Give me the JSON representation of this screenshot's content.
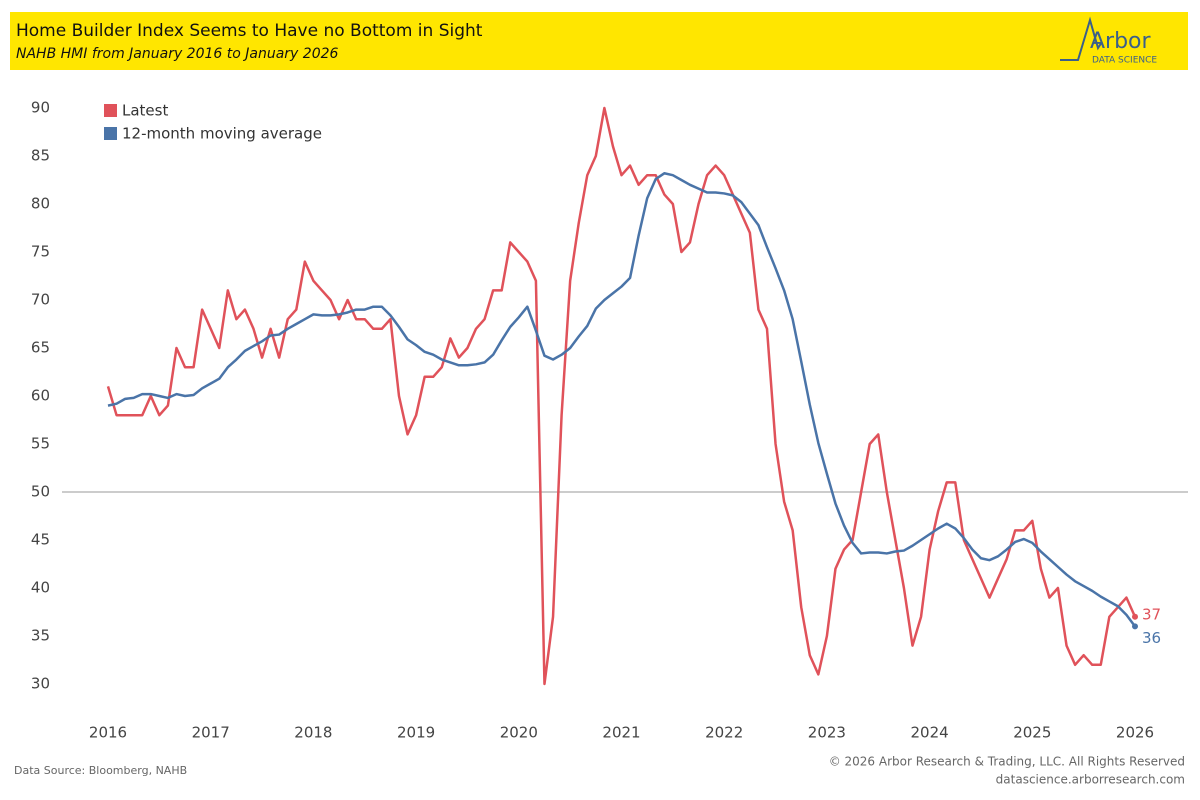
{
  "header": {
    "title": "Home Builder Index Seems to Have no Bottom in Sight",
    "subtitle": "NAHB HMI from January 2016 to January 2026",
    "logo_name": "Arbor",
    "logo_tagline": "DATA SCIENCE"
  },
  "footer": {
    "source": "Data Source: Bloomberg, NAHB",
    "copyright": "© 2026 Arbor Research & Trading, LLC. All Rights Reserved",
    "website": "datascience.arborresearch.com"
  },
  "chart_data": {
    "type": "line",
    "categories": [
      "2016",
      null,
      null,
      null,
      null,
      null,
      null,
      null,
      null,
      null,
      null,
      null,
      "2017",
      null,
      null,
      null,
      null,
      null,
      null,
      null,
      null,
      null,
      null,
      null,
      "2018",
      null,
      null,
      null,
      null,
      null,
      null,
      null,
      null,
      null,
      null,
      null,
      "2019",
      null,
      null,
      null,
      null,
      null,
      null,
      null,
      null,
      null,
      null,
      null,
      "2020",
      null,
      null,
      null,
      null,
      null,
      null,
      null,
      null,
      null,
      null,
      null,
      "2021",
      null,
      null,
      null,
      null,
      null,
      null,
      null,
      null,
      null,
      null,
      null,
      "2022",
      null,
      null,
      null,
      null,
      null,
      null,
      null,
      null,
      null,
      null,
      null,
      "2023",
      null,
      null,
      null,
      null,
      null,
      null,
      null,
      null,
      null,
      null,
      null,
      "2024",
      null,
      null,
      null,
      null,
      null,
      null,
      null,
      null,
      null,
      null,
      null,
      "2025",
      null,
      null,
      null,
      null,
      null,
      null,
      null,
      null,
      null,
      null,
      null,
      "2026"
    ],
    "series": [
      {
        "name": "Latest",
        "color": "#e0525a",
        "values": [
          61,
          58,
          58,
          58,
          58,
          60,
          58,
          59,
          65,
          63,
          63,
          69,
          67,
          65,
          71,
          68,
          69,
          67,
          64,
          67,
          64,
          68,
          69,
          74,
          72,
          71,
          70,
          68,
          70,
          68,
          68,
          67,
          67,
          68,
          60,
          56,
          58,
          62,
          62,
          63,
          66,
          64,
          65,
          67,
          68,
          71,
          71,
          76,
          75,
          74,
          72,
          30,
          37,
          58,
          72,
          78,
          83,
          85,
          90,
          86,
          83,
          84,
          82,
          83,
          83,
          81,
          80,
          75,
          76,
          80,
          83,
          84,
          83,
          81,
          79,
          77,
          69,
          67,
          55,
          49,
          46,
          38,
          33,
          31,
          35,
          42,
          44,
          45,
          50,
          55,
          56,
          50,
          45,
          40,
          34,
          37,
          44,
          48,
          51,
          51,
          45,
          43,
          41,
          39,
          41,
          43,
          46,
          46,
          47,
          42,
          39,
          40,
          34,
          32,
          33,
          32,
          32,
          37,
          38,
          39,
          37
        ]
      },
      {
        "name": "12-month moving average",
        "color": "#4a74a8",
        "values": [
          59,
          59.2,
          59.7,
          59.8,
          60.2,
          60.2,
          60,
          59.8,
          60.2,
          60,
          60.1,
          60.8,
          61.3,
          61.8,
          63,
          63.8,
          64.7,
          65.2,
          65.7,
          66.3,
          66.4,
          67,
          67.5,
          68,
          68.5,
          68.4,
          68.4,
          68.5,
          68.7,
          69,
          69,
          69.3,
          69.3,
          68.4,
          67.2,
          65.9,
          65.3,
          64.6,
          64.3,
          63.8,
          63.5,
          63.2,
          63.2,
          63.3,
          63.5,
          64.3,
          65.8,
          67.2,
          68.2,
          69.3,
          66.8,
          64.2,
          63.8,
          64.3,
          65,
          66.2,
          67.3,
          69.1,
          70,
          70.7,
          71.4,
          72.3,
          76.7,
          80.6,
          82.6,
          83.2,
          83,
          82.5,
          82,
          81.6,
          81.2,
          81.2,
          81.1,
          80.9,
          80.2,
          79,
          77.8,
          75.5,
          73.3,
          71,
          68,
          63.6,
          59.1,
          55.1,
          51.9,
          48.8,
          46.5,
          44.7,
          43.6,
          43.7,
          43.7,
          43.6,
          43.8,
          43.9,
          44.4,
          45,
          45.6,
          46.2,
          46.7,
          46.2,
          45.2,
          44,
          43.1,
          42.9,
          43.3,
          44,
          44.8,
          45.1,
          44.7,
          43.8,
          43,
          42.2,
          41.4,
          40.7,
          40.2,
          39.7,
          39.1,
          38.6,
          38.1,
          37.2,
          36
        ]
      }
    ],
    "ylim": [
      30,
      90
    ],
    "yticks": [
      30,
      35,
      40,
      45,
      50,
      55,
      60,
      65,
      70,
      75,
      80,
      85,
      90
    ],
    "reference_line": 50,
    "legend": "top-left"
  }
}
